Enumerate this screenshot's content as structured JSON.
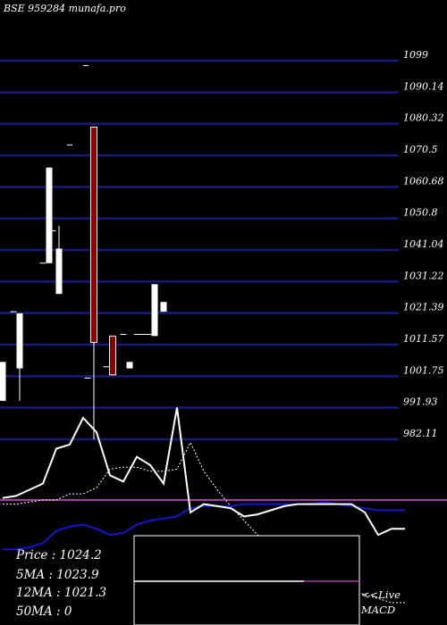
{
  "header": {
    "symbol": "BSE 959284",
    "brand": "munafa.pro"
  },
  "chart_data": {
    "type": "candlestick",
    "y_ticks": [
      "1099",
      "1090.14",
      "1080.32",
      "1070.5",
      "1060.68",
      "1050.8",
      "1041.04",
      "1031.22",
      "1021.39",
      "1011.57",
      "1001.75",
      "991.93",
      "982.11"
    ],
    "ylim": [
      982.11,
      1099
    ],
    "candles": [
      {
        "open": 1006.0,
        "close": 994.0,
        "high": 1006.0,
        "low": 994.0,
        "color": "white",
        "tick": 1004.5
      },
      {
        "open": 1004.0,
        "close": 1021.0,
        "high": 1021.0,
        "low": 994.0,
        "color": "white",
        "tick": 1021.5
      },
      {
        "open": 1036.5,
        "close": 1066.0,
        "high": 1066.0,
        "low": 1036.5,
        "color": "white",
        "tick": 1036.5
      },
      {
        "open": 1027.0,
        "close": 1041.0,
        "high": 1048.0,
        "low": 1027.0,
        "color": "white",
        "tick": 1046.5
      },
      {
        "open": 1078.5,
        "close": 1012.0,
        "high": 1078.5,
        "low": 982.11,
        "color": "red",
        "tick": 1001.0
      },
      {
        "open": 1014.0,
        "close": 1002.0,
        "high": 1014.0,
        "low": 1002.0,
        "color": "red",
        "tick": 1004.5
      },
      {
        "open": 1006.0,
        "close": 1004.0,
        "high": 1006.0,
        "low": 1004.0,
        "color": "white",
        "tick": 1014.5
      },
      {
        "open": 1014.0,
        "close": 1030.0,
        "high": 1030.0,
        "low": 1014.0,
        "color": "white",
        "tick": 1014.5
      },
      {
        "open": 1024.5,
        "close": 1021.5,
        "high": 1024.5,
        "low": 1021.5,
        "color": "white",
        "tick": null
      }
    ],
    "extra_ticks": [
      1073.0,
      1097.5
    ],
    "macd_signal": [
      24,
      24,
      23,
      21,
      15,
      13,
      12,
      14,
      17,
      16,
      12,
      10,
      9,
      8,
      4,
      3,
      3,
      3,
      2,
      2,
      2,
      2,
      2,
      2,
      1,
      2,
      3,
      4,
      5,
      5,
      5
    ],
    "macd_line": [
      -1,
      -2,
      -5,
      -8,
      -25,
      -27,
      -40,
      -33,
      -12,
      -9,
      -21,
      -17,
      -8,
      -45,
      6,
      2,
      3,
      4,
      8,
      7,
      5,
      3,
      2,
      2,
      2,
      2,
      2,
      6,
      17,
      14,
      14
    ],
    "macd_avg": [
      2,
      2,
      1,
      0,
      0,
      -3,
      -3,
      -6,
      -15,
      -16,
      -16,
      -14,
      -14,
      -15,
      -28,
      -14,
      -5,
      3,
      10,
      17,
      23,
      28,
      33,
      37,
      40,
      42,
      44,
      46,
      48,
      50,
      50
    ]
  },
  "info": {
    "price": "Price   : 1024.2",
    "ma5": "5MA : 1023.9",
    "ma12": "12MA : 1021.3",
    "ma50": "50MA : 0"
  },
  "live_macd": {
    "line1": "<<Live",
    "line2": "MACD"
  },
  "colors": {
    "grid": "#1a1a7a",
    "red": "#8b0000",
    "signal": "#1515d0",
    "zero": "#a040a0"
  }
}
